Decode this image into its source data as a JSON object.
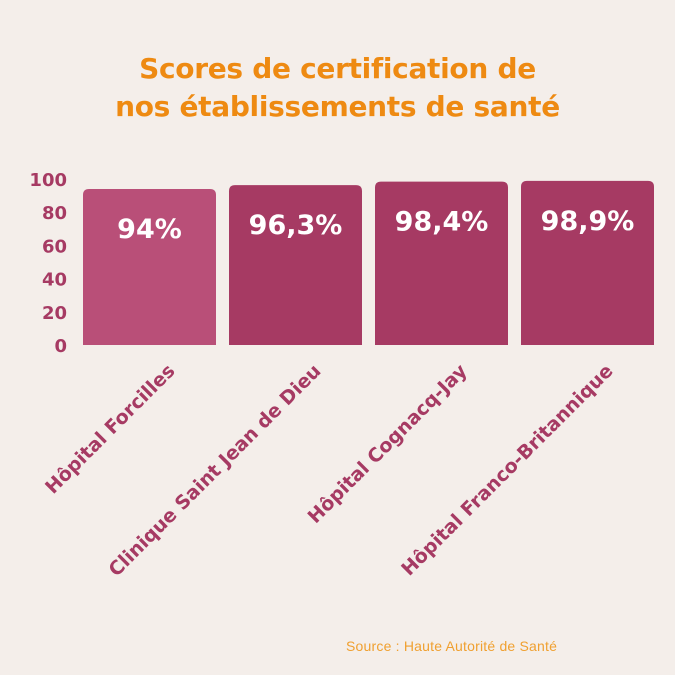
{
  "title_line1": "Scores de certification de",
  "title_line2": "nos établissements de santé",
  "source": "Source : Haute Autorité de Santé",
  "colors": {
    "background": "#f4eeea",
    "title": "#ee8a12",
    "axis_text": "#a63a63",
    "bar_light": "#b94f78",
    "bar_dark": "#a63a63",
    "bar_value_text": "#ffffff",
    "source": "#f0a030"
  },
  "chart_data": {
    "type": "bar",
    "title": "Scores de certification de nos établissements de santé",
    "categories": [
      "Hôpital Forcilles",
      "Clinique Saint Jean de Dieu",
      "Hôpital Cognacq-Jay",
      "Hôpital Franco-Britannique"
    ],
    "values": [
      94,
      96.3,
      98.4,
      98.9
    ],
    "value_labels": [
      "94%",
      "96,3%",
      "98,4%",
      "98,9%"
    ],
    "bar_colors": [
      "#b94f78",
      "#a63a63",
      "#a63a63",
      "#a63a63"
    ],
    "ylim": [
      0,
      100
    ],
    "yticks": [
      "0",
      "20",
      "40",
      "60",
      "80",
      "100"
    ],
    "xlabel": "",
    "ylabel": "",
    "grid": false,
    "legend": "none"
  }
}
